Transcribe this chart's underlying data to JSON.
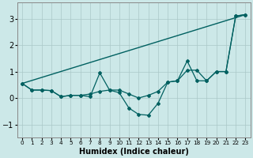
{
  "xlabel": "Humidex (Indice chaleur)",
  "xlim": [
    -0.5,
    23.5
  ],
  "ylim": [
    -1.5,
    3.6
  ],
  "yticks": [
    -1,
    0,
    1,
    2,
    3
  ],
  "background_color": "#cce8e8",
  "grid_color": "#aac8c8",
  "line_color": "#006060",
  "straight_line_x": [
    0,
    23
  ],
  "straight_line_y": [
    0.55,
    3.15
  ],
  "smooth_line_x": [
    0,
    1,
    2,
    3,
    4,
    5,
    6,
    7,
    8,
    9,
    10,
    11,
    12,
    13,
    14,
    15,
    16,
    17,
    18,
    19,
    20,
    21,
    22,
    23
  ],
  "smooth_line_y": [
    0.55,
    0.3,
    0.3,
    0.28,
    0.05,
    0.1,
    0.1,
    0.15,
    0.25,
    0.3,
    0.3,
    0.15,
    0.0,
    0.1,
    0.25,
    0.6,
    0.65,
    1.05,
    1.05,
    0.65,
    1.0,
    1.0,
    3.1,
    3.15
  ],
  "jagged_line_x": [
    0,
    1,
    2,
    3,
    4,
    5,
    6,
    7,
    8,
    9,
    10,
    11,
    12,
    13,
    14,
    15,
    16,
    17,
    18,
    19,
    20,
    21,
    22,
    23
  ],
  "jagged_line_y": [
    0.55,
    0.3,
    0.3,
    0.28,
    0.05,
    0.1,
    0.1,
    0.05,
    0.95,
    0.3,
    0.2,
    -0.38,
    -0.62,
    -0.65,
    -0.2,
    0.6,
    0.65,
    1.4,
    0.65,
    0.65,
    1.0,
    1.0,
    3.1,
    3.15
  ]
}
